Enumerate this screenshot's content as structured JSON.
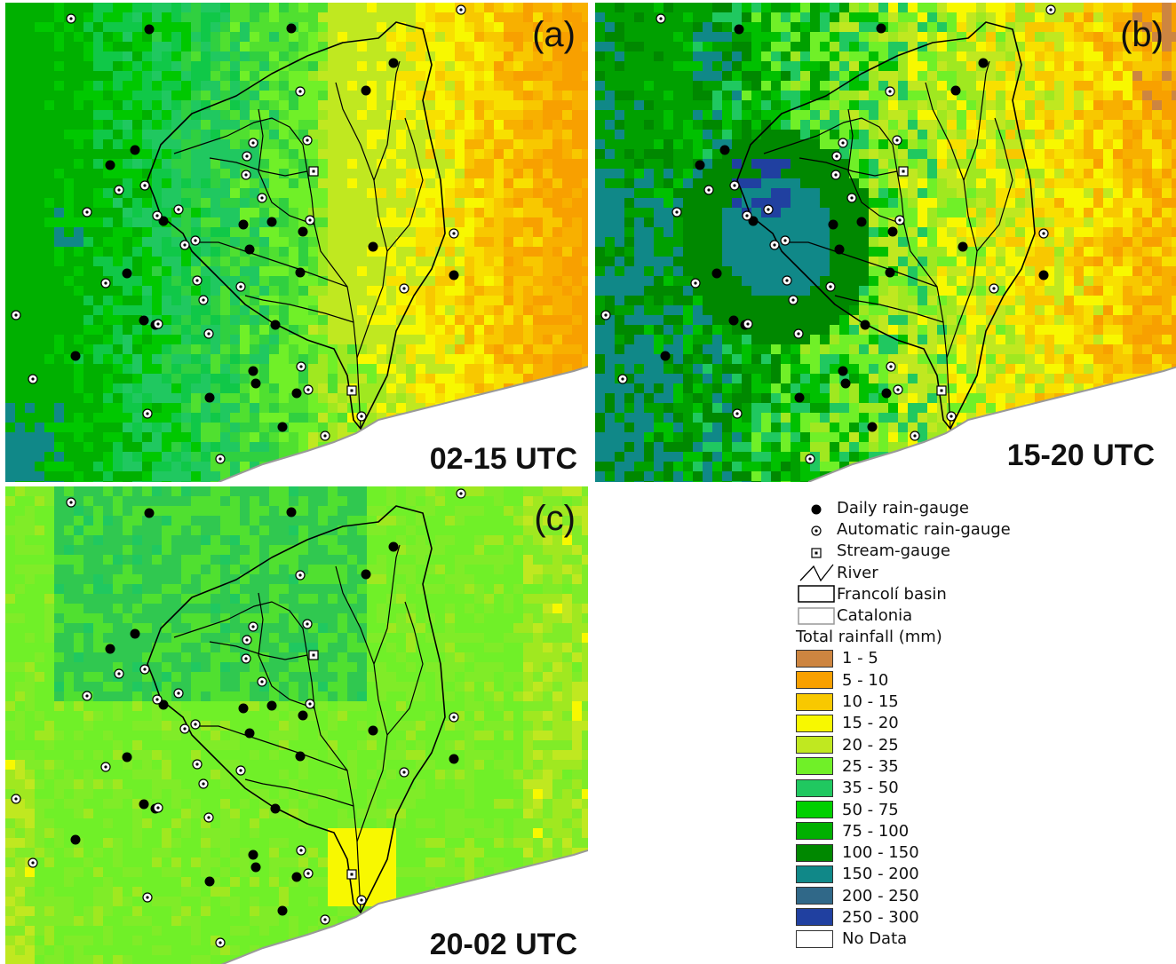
{
  "panels": [
    {
      "letter": "(a)",
      "time": "02-15 UTC",
      "palette": [
        "#1e9a1e",
        "#3cb43a",
        "#22aa4a",
        "#6ee648",
        "#2fbf5a",
        "#3dcf6a",
        "#a8e23c",
        "#f4f722",
        "#f9d21a",
        "#f8b719",
        "#f59f12",
        "#1e8a7a"
      ],
      "weights": [
        0,
        0,
        0,
        0,
        0,
        0,
        0,
        0
      ]
    },
    {
      "letter": "(b)",
      "time": "15-20 UTC"
    },
    {
      "letter": "(c)",
      "time": "20-02 UTC"
    }
  ],
  "legend": {
    "symbols": [
      {
        "label": "Daily rain-gauge",
        "icon": "filled-circle-icon"
      },
      {
        "label": "Automatic rain-gauge",
        "icon": "dotted-circle-icon"
      },
      {
        "label": "Stream-gauge",
        "icon": "dotted-square-icon"
      },
      {
        "label": "River",
        "icon": "river-line-icon"
      },
      {
        "label": "Francolí basin",
        "icon": "basin-box-icon"
      },
      {
        "label": "Catalonia",
        "icon": "catalonia-box-icon"
      }
    ],
    "title": "Total rainfall (mm)",
    "classes": [
      {
        "label": "1 - 5",
        "color": "#cd8540"
      },
      {
        "label": "5 - 10",
        "color": "#f8a000"
      },
      {
        "label": "10 - 15",
        "color": "#f8c800"
      },
      {
        "label": "15 - 20",
        "color": "#f8f800"
      },
      {
        "label": "20 - 25",
        "color": "#c0e820"
      },
      {
        "label": "25 - 35",
        "color": "#70f028"
      },
      {
        "label": "35 - 50",
        "color": "#20c860"
      },
      {
        "label": "50 - 75",
        "color": "#00d000"
      },
      {
        "label": "75 - 100",
        "color": "#00b000"
      },
      {
        "label": "100 - 150",
        "color": "#008800"
      },
      {
        "label": "150 - 200",
        "color": "#108888"
      },
      {
        "label": "200 - 250",
        "color": "#306888"
      },
      {
        "label": "250 - 300",
        "color": "#2040a0"
      },
      {
        "label": "No Data",
        "color": "#ffffff"
      }
    ]
  }
}
